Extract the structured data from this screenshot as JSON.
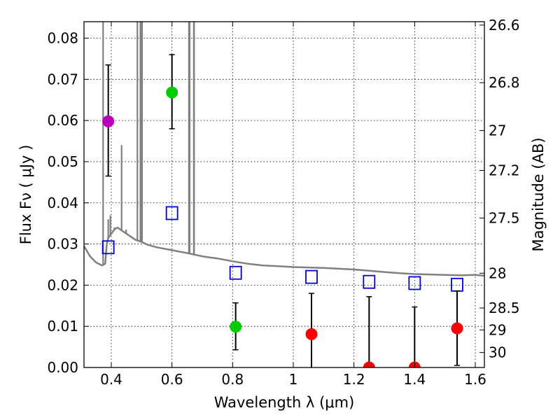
{
  "chart_data": {
    "type": "scatter",
    "xlabel": "Wavelength  λ (μm)",
    "ylabel": "Flux  Fν  ( μJy )",
    "y2label": "Magnitude (AB)",
    "xlim": [
      0.31,
      1.63
    ],
    "ylim": [
      0.0,
      0.084
    ],
    "grid": true,
    "x_ticks": [
      {
        "v": 0.4,
        "label": "0.4"
      },
      {
        "v": 0.6,
        "label": "0.6"
      },
      {
        "v": 0.8,
        "label": "0.8"
      },
      {
        "v": 1.0,
        "label": "1"
      },
      {
        "v": 1.2,
        "label": "1.2"
      },
      {
        "v": 1.4,
        "label": "1.4"
      },
      {
        "v": 1.6,
        "label": "1.6"
      }
    ],
    "y_ticks": [
      {
        "v": 0.0,
        "label": "0.00"
      },
      {
        "v": 0.01,
        "label": "0.01"
      },
      {
        "v": 0.02,
        "label": "0.02"
      },
      {
        "v": 0.03,
        "label": "0.03"
      },
      {
        "v": 0.04,
        "label": "0.04"
      },
      {
        "v": 0.05,
        "label": "0.05"
      },
      {
        "v": 0.06,
        "label": "0.06"
      },
      {
        "v": 0.07,
        "label": "0.07"
      },
      {
        "v": 0.08,
        "label": "0.08"
      }
    ],
    "y2_ticks": [
      {
        "mag": 26.6,
        "label": "26.6"
      },
      {
        "mag": 26.8,
        "label": "26.8"
      },
      {
        "mag": 27.0,
        "label": "27"
      },
      {
        "mag": 27.2,
        "label": "27.2"
      },
      {
        "mag": 27.5,
        "label": "27.5"
      },
      {
        "mag": 28.0,
        "label": "28"
      },
      {
        "mag": 28.5,
        "label": "28.5"
      },
      {
        "mag": 29.0,
        "label": "29"
      },
      {
        "mag": 30.0,
        "label": "30"
      }
    ],
    "series": [
      {
        "name": "template spectrum",
        "kind": "line",
        "color": "#808080",
        "x": [
          0.31,
          0.33,
          0.35,
          0.37,
          0.38,
          0.385,
          0.39,
          0.4,
          0.41,
          0.42,
          0.43,
          0.44,
          0.46,
          0.48,
          0.5,
          0.52,
          0.55,
          0.6,
          0.65,
          0.7,
          0.75,
          0.8,
          0.85,
          0.9,
          0.95,
          1.0,
          1.05,
          1.1,
          1.15,
          1.2,
          1.25,
          1.3,
          1.35,
          1.4,
          1.45,
          1.5,
          1.55,
          1.6,
          1.63
        ],
        "y": [
          0.0295,
          0.027,
          0.0255,
          0.0248,
          0.0252,
          0.03,
          0.0315,
          0.0325,
          0.0335,
          0.034,
          0.0335,
          0.033,
          0.032,
          0.031,
          0.0305,
          0.0298,
          0.0292,
          0.0285,
          0.0278,
          0.027,
          0.0265,
          0.0258,
          0.0252,
          0.0248,
          0.0246,
          0.0244,
          0.0243,
          0.0242,
          0.024,
          0.0238,
          0.0235,
          0.0232,
          0.0229,
          0.0227,
          0.0226,
          0.0225,
          0.0224,
          0.0225,
          0.0223
        ]
      },
      {
        "name": "emission lines",
        "kind": "spikes",
        "color": "#808080",
        "x": [
          0.373,
          0.39,
          0.397,
          0.41,
          0.434,
          0.449,
          0.486,
          0.4959,
          0.5007,
          0.5015,
          0.656,
          0.6563,
          0.6584,
          0.672,
          0.673
        ],
        "y": [
          0.084,
          0.036,
          0.037,
          0.034,
          0.054,
          0.0335,
          0.084,
          0.084,
          0.084,
          0.084,
          0.084,
          0.084,
          0.084,
          0.084,
          0.084
        ]
      },
      {
        "name": "model photometry",
        "kind": "open-square",
        "color": "#0000cc",
        "x": [
          0.39,
          0.6,
          0.81,
          1.06,
          1.25,
          1.4,
          1.54
        ],
        "y": [
          0.0292,
          0.0375,
          0.023,
          0.022,
          0.0208,
          0.0205,
          0.0201
        ]
      },
      {
        "name": "observed (purple)",
        "kind": "dot",
        "color": "#bb00bb",
        "x": [
          0.39
        ],
        "y": [
          0.0598
        ],
        "yerr_low": [
          0.0133
        ],
        "yerr_high": [
          0.0137
        ]
      },
      {
        "name": "observed (green)",
        "kind": "dot",
        "color": "#00cc00",
        "x": [
          0.6,
          0.81
        ],
        "y": [
          0.0668,
          0.0099
        ],
        "yerr_low": [
          0.0088,
          0.0056
        ],
        "yerr_high": [
          0.0092,
          0.0058
        ]
      },
      {
        "name": "observed (red)",
        "kind": "dot",
        "color": "#ff0000",
        "x": [
          1.06,
          1.25,
          1.4,
          1.54
        ],
        "y": [
          0.0081,
          0.0,
          0.0,
          0.0095
        ],
        "yerr_low": [
          0.0081,
          0.0,
          0.0,
          0.009
        ],
        "yerr_high": [
          0.0099,
          0.0172,
          0.0147,
          0.0091
        ]
      }
    ]
  }
}
